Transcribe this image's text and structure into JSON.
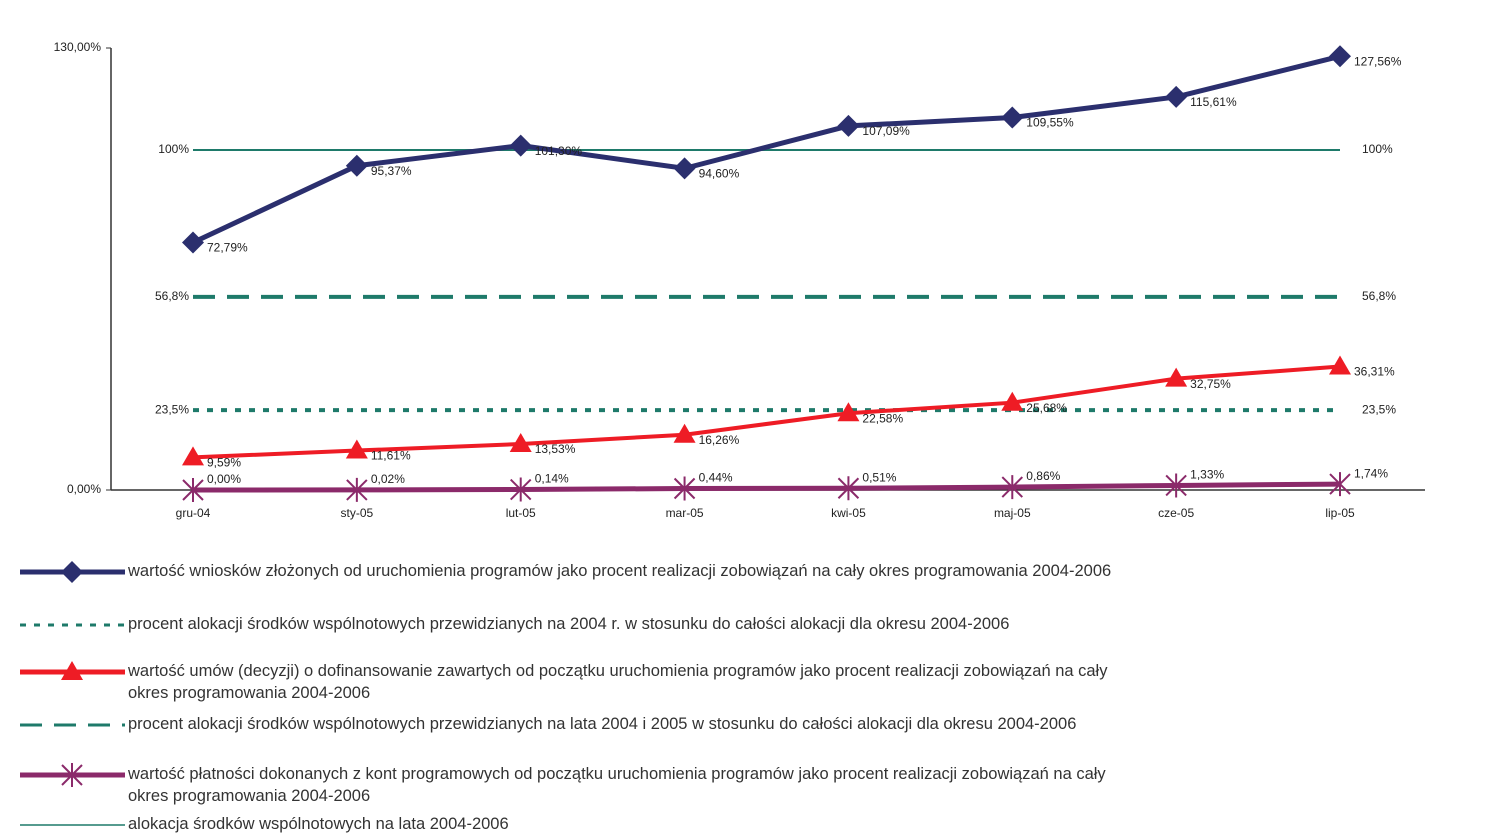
{
  "chart_data": {
    "type": "line",
    "categories": [
      "gru-04",
      "sty-05",
      "lut-05",
      "mar-05",
      "kwi-05",
      "maj-05",
      "cze-05",
      "lip-05"
    ],
    "ylim": [
      0,
      130
    ],
    "yticks": [
      {
        "value": 0,
        "label": "0,00%"
      },
      {
        "value": 130,
        "label": "130,00%"
      }
    ],
    "series": [
      {
        "name": "wartość  wniosków złożonych od uruchomienia programów jako procent realizacji zobowiązań na cały okres programowania 2004-2006",
        "color": "#2b2f6e",
        "marker": "diamond",
        "values": [
          72.79,
          95.37,
          101.3,
          94.6,
          107.09,
          109.55,
          115.61,
          127.56
        ],
        "value_labels": [
          "72,79%",
          "95,37%",
          "101,30%",
          "94,60%",
          "107,09%",
          "109,55%",
          "115,61%",
          "127,56%"
        ]
      },
      {
        "name": "wartość  umów (decyzji) o dofinansowanie zawartych od początku uruchomienia programów jako procent realizacji zobowiązań na cały\nokres programowania 2004-2006",
        "color": "#ee1c25",
        "marker": "triangle",
        "values": [
          9.59,
          11.61,
          13.53,
          16.26,
          22.58,
          25.68,
          32.75,
          36.31
        ],
        "value_labels": [
          "9,59%",
          "11,61%",
          "13,53%",
          "16,26%",
          "22,58%",
          "25,68%",
          "32,75%",
          "36,31%"
        ]
      },
      {
        "name": "wartość  płatności dokonanych z kont programowych od początku uruchomienia programów jako procent realizacji zobowiązań na cały\nokres programowania 2004-2006",
        "color": "#8b2a6a",
        "marker": "star",
        "values": [
          0.0,
          0.02,
          0.14,
          0.44,
          0.51,
          0.86,
          1.33,
          1.74
        ],
        "value_labels": [
          "0,00%",
          "0,02%",
          "0,14%",
          "0,44%",
          "0,51%",
          "0,86%",
          "1,33%",
          "1,74%"
        ]
      }
    ],
    "reference_lines": [
      {
        "name": "procent alokacji środków wspólnotowych przewidzianych na 2004 r. w stosunku do całości alokacji dla okresu 2004-2006",
        "value": 23.5,
        "label": "23,5%",
        "color": "#1e7a6a",
        "style": "dotted"
      },
      {
        "name": "procent alokacji środków wspólnotowych przewidzianych na lata 2004 i 2005 w stosunku do całości alokacji dla okresu 2004-2006",
        "value": 56.8,
        "label": "56,8%",
        "color": "#1e7a6a",
        "style": "dashed"
      },
      {
        "name": "alokacja środków wspólnotowych na lata 2004-2006",
        "value": 100,
        "label": "100%",
        "color": "#1e7a6a",
        "style": "solid"
      }
    ]
  }
}
